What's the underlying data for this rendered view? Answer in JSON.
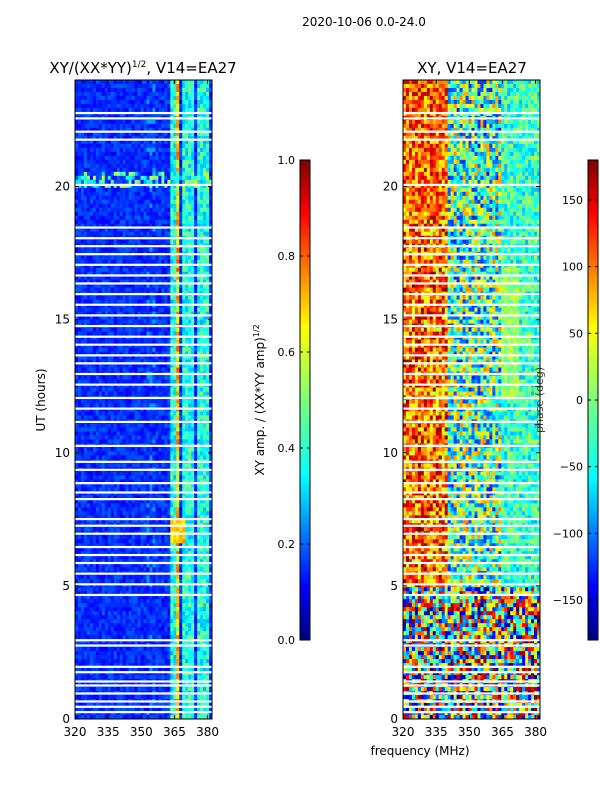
{
  "figure_title": "2020-10-06 0.0-24.0",
  "chart_data": [
    {
      "type": "heatmap",
      "title": "XY/(XX*YY)$^{1/2}$, V14=EA27",
      "title_main": "XY/(XX*YY)",
      "title_sup": "1/2",
      "title_rest": ", V14=EA27",
      "xlabel": "frequency (MHz)",
      "ylabel": "UT (hours)",
      "xlim": [
        320,
        382
      ],
      "ylim": [
        0,
        24
      ],
      "xticks": [
        320,
        335,
        350,
        365,
        380
      ],
      "yticks": [
        0,
        5,
        10,
        15,
        20
      ],
      "colorbar": {
        "label": "XY amp. / (XX*YY amp)$^{1/2}$",
        "label_main": "XY amp. / (XX*YY amp)",
        "label_sup": "1/2",
        "range": [
          0.0,
          1.0
        ],
        "ticks": [
          "0.0",
          "0.2",
          "0.4",
          "0.6",
          "0.8",
          "1.0"
        ],
        "colormap": "jet"
      },
      "blank_hours": [
        0.3,
        0.5,
        0.7,
        1.0,
        1.3,
        1.45,
        1.8,
        2.0,
        2.8,
        3.0,
        4.7,
        5.1,
        5.5,
        5.9,
        6.2,
        6.5,
        7.0,
        7.3,
        7.55,
        8.3,
        8.55,
        8.9,
        9.4,
        9.7,
        10.3,
        11.2,
        11.7,
        12.1,
        12.6,
        13.0,
        13.4,
        13.7,
        14.1,
        14.4,
        14.8,
        15.2,
        15.6,
        16.0,
        16.4,
        16.7,
        17.1,
        17.5,
        17.8,
        18.1,
        18.5,
        20.1,
        21.8,
        22.1,
        22.6,
        22.8
      ]
    },
    {
      "type": "heatmap",
      "title": "XY, V14=EA27",
      "xlim": [
        320,
        382
      ],
      "ylim": [
        0,
        24
      ],
      "xticks": [
        320,
        335,
        350,
        365,
        380
      ],
      "yticks": [
        0,
        5,
        10,
        15,
        20
      ],
      "colorbar": {
        "label": "phase (deg)",
        "range": [
          -180,
          180
        ],
        "ticks": [
          "−150",
          "−100",
          "−50",
          "0",
          "50",
          "100",
          "150"
        ],
        "colormap": "jet"
      },
      "blank_hours": [
        0.3,
        0.5,
        0.7,
        1.0,
        1.3,
        1.45,
        1.8,
        2.0,
        2.8,
        3.0,
        4.7,
        5.1,
        5.5,
        5.9,
        6.2,
        6.5,
        7.0,
        7.3,
        7.55,
        8.3,
        8.55,
        8.9,
        9.4,
        9.7,
        10.3,
        11.2,
        11.7,
        12.1,
        12.6,
        13.0,
        13.4,
        13.7,
        14.1,
        14.4,
        14.8,
        15.2,
        15.6,
        16.0,
        16.4,
        16.7,
        17.1,
        17.5,
        17.8,
        18.1,
        18.5,
        20.1,
        21.8,
        22.1,
        22.6,
        22.8
      ]
    }
  ]
}
